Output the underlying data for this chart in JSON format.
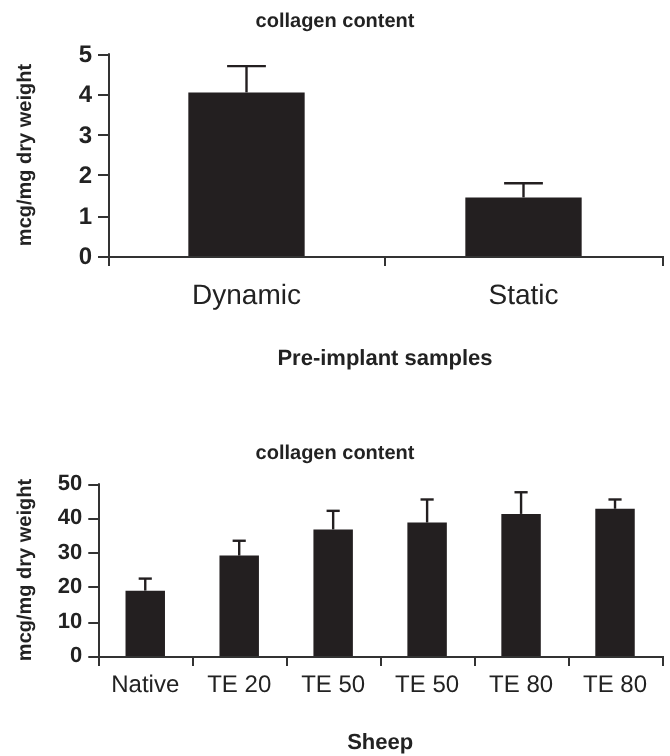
{
  "chart_data": [
    {
      "type": "bar",
      "title": "collagen content",
      "xlabel": "Pre-implant samples",
      "ylabel": "mcg/mg dry weight",
      "categories": [
        "Dynamic",
        "Static"
      ],
      "series": [
        {
          "color": "#231f20",
          "values": [
            4.05,
            1.45
          ],
          "errors": [
            [
              4.05,
              4.7
            ],
            [
              1.45,
              1.8
            ]
          ]
        }
      ],
      "ylim": [
        0,
        5
      ],
      "yticks": [
        0,
        1,
        2,
        3,
        4,
        5
      ],
      "grid": false
    },
    {
      "type": "bar",
      "title": "collagen content",
      "xlabel": "Sheep",
      "ylabel": "mcg/mg dry weight",
      "categories": [
        "Native",
        "TE 20",
        "TE 50",
        "TE 50",
        "TE 80",
        "TE 80"
      ],
      "series": [
        {
          "color": "#231f20",
          "values": [
            19.0,
            29.2,
            36.8,
            38.8,
            41.3,
            42.8
          ],
          "errors": [
            [
              19.0,
              22.5
            ],
            [
              29.2,
              33.5
            ],
            [
              36.8,
              42.2
            ],
            [
              38.8,
              45.5
            ],
            [
              41.3,
              47.6
            ],
            [
              42.8,
              45.5
            ]
          ]
        }
      ],
      "ylim": [
        0,
        50
      ],
      "yticks": [
        0,
        10,
        20,
        30,
        40,
        50
      ],
      "grid": false
    }
  ]
}
